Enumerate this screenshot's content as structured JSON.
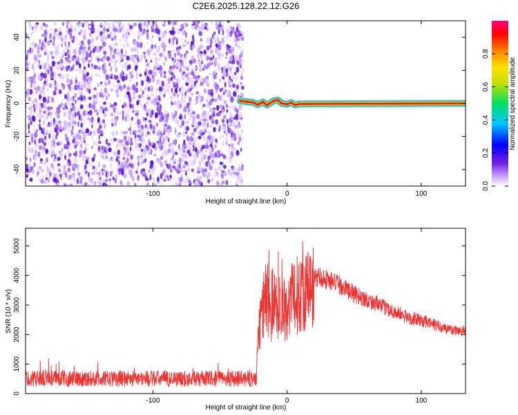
{
  "title": "C2E6.2025.128.22.12.G26",
  "chart_data": [
    {
      "type": "heatmap",
      "xlabel": "Height of straight line (km)",
      "ylabel": "Frequency (Hz)",
      "xlim": [
        -195,
        133
      ],
      "ylim": [
        -50,
        50
      ],
      "xticks": [
        -100,
        0,
        100
      ],
      "yticks": [
        -40,
        -20,
        0,
        20,
        40
      ],
      "noise_region_x": [
        -195,
        -35
      ],
      "signal_line": [
        {
          "x": -35,
          "y": 1.5
        },
        {
          "x": -30,
          "y": 1.0
        },
        {
          "x": -25,
          "y": 0.5
        },
        {
          "x": -22,
          "y": -0.8
        },
        {
          "x": -18,
          "y": 0.8
        },
        {
          "x": -15,
          "y": -1.0
        },
        {
          "x": -10,
          "y": 1.5
        },
        {
          "x": -7,
          "y": 2.0
        },
        {
          "x": -4,
          "y": 0.0
        },
        {
          "x": 0,
          "y": -0.5
        },
        {
          "x": 3,
          "y": 0.5
        },
        {
          "x": 6,
          "y": -1.0
        },
        {
          "x": 9,
          "y": -0.3
        },
        {
          "x": 133,
          "y": 0.0
        }
      ],
      "colorbar": {
        "label": "Normalized spectral amplitude",
        "ticks": [
          0.0,
          0.2,
          0.4,
          0.6,
          0.8
        ],
        "range": [
          0,
          1
        ]
      }
    },
    {
      "type": "line",
      "xlabel": "Height of straight line (km)",
      "ylabel": "SNR (10 * v/v)",
      "xlim": [
        -195,
        133
      ],
      "ylim": [
        0,
        5600
      ],
      "xticks": [
        -100,
        0,
        100
      ],
      "yticks": [
        0,
        1000,
        2000,
        3000,
        4000,
        5000
      ],
      "color": "#ee3333",
      "series": [
        {
          "x": [
            -195,
            -180,
            -160,
            -140,
            -120,
            -100,
            -80,
            -60,
            -40,
            -30,
            -23,
            -22,
            -20,
            -15,
            -12,
            -10,
            -8,
            -5,
            0,
            5,
            10,
            15,
            20,
            25,
            30,
            40,
            50,
            60,
            70,
            80,
            90,
            100,
            110,
            120,
            133
          ],
          "y": [
            520,
            540,
            520,
            510,
            530,
            520,
            510,
            520,
            520,
            520,
            500,
            1400,
            2800,
            3600,
            3000,
            3700,
            3300,
            3100,
            3200,
            3500,
            3700,
            3800,
            3950,
            4000,
            3900,
            3700,
            3400,
            3200,
            3000,
            2800,
            2600,
            2500,
            2350,
            2200,
            2150
          ]
        }
      ]
    }
  ]
}
